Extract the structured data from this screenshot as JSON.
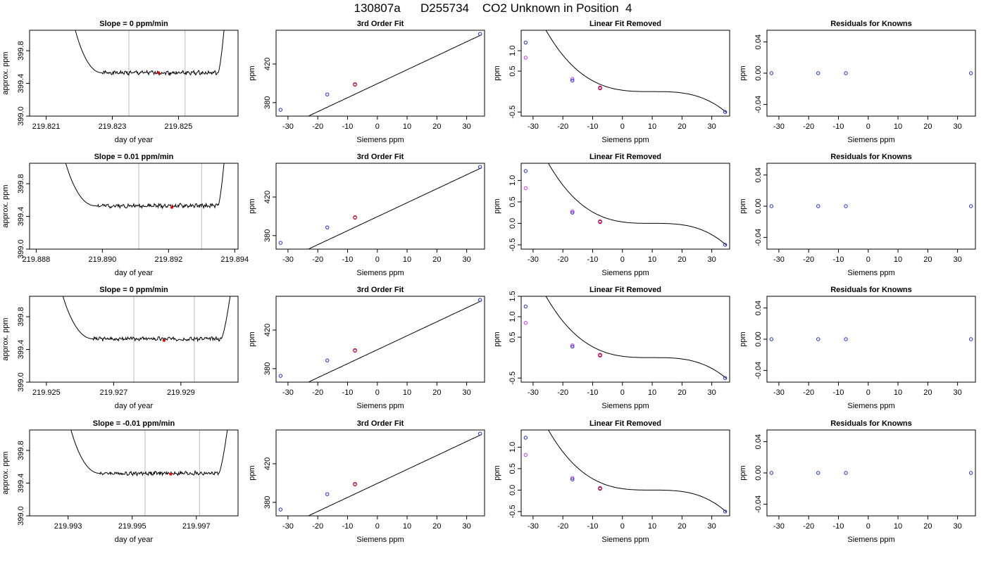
{
  "figure_title": "130807a      D255734    CO2 Unknown in Position  4",
  "chart_data": [
    {
      "type": "line",
      "title": "Slope =  0  ppm/min",
      "xlabel": "day of year",
      "ylabel": "approx. ppm",
      "xlim": [
        219.8205,
        219.8268
      ],
      "ylim": [
        399.0,
        400.05
      ],
      "xticks": [
        219.821,
        219.823,
        219.825
      ],
      "xtick_labels": [
        "219.821",
        "219.823",
        "219.825"
      ],
      "yticks": [
        399.0,
        399.4,
        399.8
      ],
      "ytick_labels": [
        "399.0",
        "399.4",
        "399.8"
      ],
      "vlines": [
        219.8235,
        219.8252
      ],
      "vline_color": "#bbbbbb",
      "marker": {
        "x": 219.8244,
        "y": 399.53
      },
      "trace": {
        "x_start": 219.8218,
        "x_end": 219.8264,
        "plateau_start": 219.8227,
        "plateau_end": 219.8262,
        "plateau": 399.53,
        "high": 400.15,
        "seed": 1
      }
    },
    {
      "type": "scatter",
      "title": "3rd Order Fit",
      "xlabel": "Siemens ppm",
      "ylabel": "ppm",
      "xlim": [
        -34,
        36
      ],
      "ylim": [
        366,
        455
      ],
      "xticks": [
        -30,
        -20,
        -10,
        0,
        10,
        20,
        30
      ],
      "xtick_labels": [
        "-30",
        "-20",
        "-10",
        "0",
        "10",
        "20",
        "30"
      ],
      "yticks": [
        380,
        420
      ],
      "ytick_labels": [
        "380",
        "420"
      ],
      "curve": {
        "a": 399.6,
        "b": 1.45
      },
      "points_blue": [
        [
          -32.5,
          372.5
        ],
        [
          -16.8,
          388.5
        ],
        [
          -7.5,
          398.6
        ],
        [
          34.5,
          451.2
        ]
      ],
      "points_red": [
        [
          -7.5,
          399.0
        ]
      ]
    },
    {
      "type": "scatter",
      "title": "Linear Fit Removed",
      "xlabel": "Siemens ppm",
      "ylabel": "ppm",
      "xlim": [
        -34,
        36
      ],
      "ylim": [
        -0.6,
        1.5
      ],
      "xticks": [
        -30,
        -20,
        -10,
        0,
        10,
        20,
        30
      ],
      "xtick_labels": [
        "-30",
        "-20",
        "-10",
        "0",
        "10",
        "20",
        "30"
      ],
      "yticks": [
        -0.5,
        0.5,
        1.0
      ],
      "ytick_labels": [
        "-0.5",
        "0.5",
        "1.0"
      ],
      "curve": {
        "c0": 0.0,
        "c1": 0.0,
        "c2": 0.0,
        "c3": 0.0
      },
      "points_blue": [
        [
          -32.5,
          1.2
        ],
        [
          -16.8,
          0.27
        ],
        [
          -7.5,
          0.08
        ],
        [
          34.5,
          -0.5
        ]
      ],
      "points_magenta": [
        [
          -32.5,
          0.83
        ],
        [
          -16.8,
          0.31
        ],
        [
          -7.5,
          0.1
        ]
      ],
      "points_red": [
        [
          -7.5,
          0.09
        ]
      ]
    },
    {
      "type": "scatter",
      "title": "Residuals for Knowns",
      "xlabel": "Siemens ppm",
      "ylabel": "ppm",
      "xlim": [
        -34,
        36
      ],
      "ylim": [
        -0.055,
        0.055
      ],
      "xticks": [
        -30,
        -20,
        -10,
        0,
        10,
        20,
        30
      ],
      "xtick_labels": [
        "-30",
        "-20",
        "-10",
        "0",
        "10",
        "20",
        "30"
      ],
      "yticks": [
        -0.04,
        0.0,
        0.04
      ],
      "ytick_labels": [
        "-0.04",
        "0.00",
        "0.04"
      ],
      "points_blue": [
        [
          -32.5,
          0
        ],
        [
          -16.8,
          0
        ],
        [
          -7.5,
          0
        ],
        [
          34.5,
          0
        ]
      ]
    },
    {
      "type": "line",
      "title": "Slope =  0.01  ppm/min",
      "xlabel": "day of year",
      "ylabel": "approx. ppm",
      "xlim": [
        219.8878,
        219.8941
      ],
      "ylim": [
        399.0,
        400.05
      ],
      "xticks": [
        219.888,
        219.89,
        219.892,
        219.894
      ],
      "xtick_labels": [
        "219.888",
        "219.890",
        "219.892",
        "219.894"
      ],
      "yticks": [
        399.0,
        399.4,
        399.8
      ],
      "ytick_labels": [
        "399.0",
        "399.4",
        "399.8"
      ],
      "vlines": [
        219.8911,
        219.893
      ],
      "vline_color": "#bbbbbb",
      "marker": {
        "x": 219.8921,
        "y": 399.51
      },
      "trace": {
        "x_start": 219.8888,
        "x_end": 219.8937,
        "plateau_start": 219.8898,
        "plateau_end": 219.8935,
        "plateau": 399.53,
        "high": 400.15,
        "seed": 2
      }
    },
    {
      "type": "scatter",
      "title": "3rd Order Fit",
      "xlabel": "Siemens ppm",
      "ylabel": "ppm",
      "xlim": [
        -34,
        36
      ],
      "ylim": [
        366,
        455
      ],
      "xticks": [
        -30,
        -20,
        -10,
        0,
        10,
        20,
        30
      ],
      "xtick_labels": [
        "-30",
        "-20",
        "-10",
        "0",
        "10",
        "20",
        "30"
      ],
      "yticks": [
        380,
        420
      ],
      "ytick_labels": [
        "380",
        "420"
      ],
      "curve": {
        "a": 399.6,
        "b": 1.45
      },
      "points_blue": [
        [
          -32.5,
          372.5
        ],
        [
          -16.8,
          388.5
        ],
        [
          -7.5,
          398.6
        ],
        [
          34.5,
          451.2
        ]
      ],
      "points_red": [
        [
          -7.5,
          399.0
        ]
      ]
    },
    {
      "type": "scatter",
      "title": "Linear Fit Removed",
      "xlabel": "Siemens ppm",
      "ylabel": "ppm",
      "xlim": [
        -34,
        36
      ],
      "ylim": [
        -0.6,
        1.4
      ],
      "xticks": [
        -30,
        -20,
        -10,
        0,
        10,
        20,
        30
      ],
      "xtick_labels": [
        "-30",
        "-20",
        "-10",
        "0",
        "10",
        "20",
        "30"
      ],
      "yticks": [
        -0.5,
        0.0,
        0.5,
        1.0
      ],
      "ytick_labels": [
        "-0.5",
        "0.0",
        "0.5",
        "1.0"
      ],
      "curve": {
        "c0": 0.0,
        "c1": 0.0,
        "c2": 0.0,
        "c3": 0.0
      },
      "points_blue": [
        [
          -32.5,
          1.22
        ],
        [
          -16.8,
          0.25
        ],
        [
          -7.5,
          0.03
        ],
        [
          34.5,
          -0.5
        ]
      ],
      "points_magenta": [
        [
          -32.5,
          0.82
        ],
        [
          -16.8,
          0.28
        ],
        [
          -7.5,
          0.05
        ]
      ],
      "points_red": [
        [
          -7.5,
          0.04
        ]
      ]
    },
    {
      "type": "scatter",
      "title": "Residuals for Knowns",
      "xlabel": "Siemens ppm",
      "ylabel": "ppm",
      "xlim": [
        -34,
        36
      ],
      "ylim": [
        -0.055,
        0.055
      ],
      "xticks": [
        -30,
        -20,
        -10,
        0,
        10,
        20,
        30
      ],
      "xtick_labels": [
        "-30",
        "-20",
        "-10",
        "0",
        "10",
        "20",
        "30"
      ],
      "yticks": [
        -0.04,
        0.0,
        0.04
      ],
      "ytick_labels": [
        "-0.04",
        "0.00",
        "0.04"
      ],
      "points_blue": [
        [
          -32.5,
          0
        ],
        [
          -16.8,
          0
        ],
        [
          -7.5,
          0
        ],
        [
          34.5,
          0
        ]
      ]
    },
    {
      "type": "line",
      "title": "Slope =  0  ppm/min",
      "xlabel": "day of year",
      "ylabel": "approx. ppm",
      "xlim": [
        219.9245,
        219.9307
      ],
      "ylim": [
        399.0,
        400.05
      ],
      "xticks": [
        219.925,
        219.927,
        219.929
      ],
      "xtick_labels": [
        "219.925",
        "219.927",
        "219.929"
      ],
      "yticks": [
        399.0,
        399.4,
        399.8
      ],
      "ytick_labels": [
        "399.0",
        "399.4",
        "399.8"
      ],
      "vlines": [
        219.9276,
        219.9294
      ],
      "vline_color": "#bbbbbb",
      "marker": {
        "x": 219.9285,
        "y": 399.51
      },
      "trace": {
        "x_start": 219.9254,
        "x_end": 219.9305,
        "plateau_start": 219.9264,
        "plateau_end": 219.9302,
        "plateau": 399.53,
        "high": 400.15,
        "seed": 3
      }
    },
    {
      "type": "scatter",
      "title": "3rd Order Fit",
      "xlabel": "Siemens ppm",
      "ylabel": "ppm",
      "xlim": [
        -34,
        36
      ],
      "ylim": [
        366,
        455
      ],
      "xticks": [
        -30,
        -20,
        -10,
        0,
        10,
        20,
        30
      ],
      "xtick_labels": [
        "-30",
        "-20",
        "-10",
        "0",
        "10",
        "20",
        "30"
      ],
      "yticks": [
        380,
        420
      ],
      "ytick_labels": [
        "380",
        "420"
      ],
      "curve": {
        "a": 399.6,
        "b": 1.45
      },
      "points_blue": [
        [
          -32.5,
          372.5
        ],
        [
          -16.8,
          388.5
        ],
        [
          -7.5,
          398.6
        ],
        [
          34.5,
          451.2
        ]
      ],
      "points_red": [
        [
          -7.5,
          399.0
        ]
      ]
    },
    {
      "type": "scatter",
      "title": "Linear Fit Removed",
      "xlabel": "Siemens ppm",
      "ylabel": "ppm",
      "xlim": [
        -34,
        36
      ],
      "ylim": [
        -0.6,
        1.5
      ],
      "xticks": [
        -30,
        -20,
        -10,
        0,
        10,
        20,
        30
      ],
      "xtick_labels": [
        "-30",
        "-20",
        "-10",
        "0",
        "10",
        "20",
        "30"
      ],
      "yticks": [
        -0.5,
        0.5,
        1.0,
        1.5
      ],
      "ytick_labels": [
        "-0.5",
        "0.5",
        "1.0",
        "1.5"
      ],
      "curve": {
        "c0": 0.0,
        "c1": 0.0,
        "c2": 0.0,
        "c3": 0.0
      },
      "points_blue": [
        [
          -32.5,
          1.25
        ],
        [
          -16.8,
          0.27
        ],
        [
          -7.5,
          0.05
        ],
        [
          34.5,
          -0.5
        ]
      ],
      "points_magenta": [
        [
          -32.5,
          0.85
        ],
        [
          -16.8,
          0.3
        ],
        [
          -7.5,
          0.07
        ]
      ],
      "points_red": [
        [
          -7.5,
          0.06
        ]
      ]
    },
    {
      "type": "scatter",
      "title": "Residuals for Knowns",
      "xlabel": "Siemens ppm",
      "ylabel": "ppm",
      "xlim": [
        -34,
        36
      ],
      "ylim": [
        -0.055,
        0.055
      ],
      "xticks": [
        -30,
        -20,
        -10,
        0,
        10,
        20,
        30
      ],
      "xtick_labels": [
        "-30",
        "-20",
        "-10",
        "0",
        "10",
        "20",
        "30"
      ],
      "yticks": [
        -0.04,
        0.0,
        0.04
      ],
      "ytick_labels": [
        "-0.04",
        "0.00",
        "0.04"
      ],
      "points_blue": [
        [
          -32.5,
          0
        ],
        [
          -16.8,
          0
        ],
        [
          -7.5,
          0
        ],
        [
          34.5,
          0
        ]
      ]
    },
    {
      "type": "line",
      "title": "Slope =  -0.01  ppm/min",
      "xlabel": "day of year",
      "ylabel": "approx. ppm",
      "xlim": [
        219.9918,
        219.9983
      ],
      "ylim": [
        399.0,
        400.05
      ],
      "xticks": [
        219.993,
        219.995,
        219.997
      ],
      "xtick_labels": [
        "219.993",
        "219.995",
        "219.997"
      ],
      "yticks": [
        399.0,
        399.4,
        399.8
      ],
      "ytick_labels": [
        "399.0",
        "399.4",
        "399.8"
      ],
      "vlines": [
        219.9954,
        219.9971
      ],
      "vline_color": "#bbbbbb",
      "marker": {
        "x": 219.9962,
        "y": 399.51
      },
      "trace": {
        "x_start": 219.993,
        "x_end": 219.998,
        "plateau_start": 219.994,
        "plateau_end": 219.9977,
        "plateau": 399.52,
        "high": 400.15,
        "seed": 4
      }
    },
    {
      "type": "scatter",
      "title": "3rd Order Fit",
      "xlabel": "Siemens ppm",
      "ylabel": "ppm",
      "xlim": [
        -34,
        36
      ],
      "ylim": [
        366,
        455
      ],
      "xticks": [
        -30,
        -20,
        -10,
        0,
        10,
        20,
        30
      ],
      "xtick_labels": [
        "-30",
        "-20",
        "-10",
        "0",
        "10",
        "20",
        "30"
      ],
      "yticks": [
        380,
        420
      ],
      "ytick_labels": [
        "380",
        "420"
      ],
      "curve": {
        "a": 399.6,
        "b": 1.45
      },
      "points_blue": [
        [
          -32.5,
          372.5
        ],
        [
          -16.8,
          388.5
        ],
        [
          -7.5,
          398.6
        ],
        [
          34.5,
          451.2
        ]
      ],
      "points_red": [
        [
          -7.5,
          399.0
        ]
      ]
    },
    {
      "type": "scatter",
      "title": "Linear Fit Removed",
      "xlabel": "Siemens ppm",
      "ylabel": "ppm",
      "xlim": [
        -34,
        36
      ],
      "ylim": [
        -0.6,
        1.4
      ],
      "xticks": [
        -30,
        -20,
        -10,
        0,
        10,
        20,
        30
      ],
      "xtick_labels": [
        "-30",
        "-20",
        "-10",
        "0",
        "10",
        "20",
        "30"
      ],
      "yticks": [
        -0.5,
        0.0,
        0.5,
        1.0
      ],
      "ytick_labels": [
        "-0.5",
        "0.0",
        "0.5",
        "1.0"
      ],
      "curve": {
        "c0": 0.0,
        "c1": 0.0,
        "c2": 0.0,
        "c3": 0.0
      },
      "points_blue": [
        [
          -32.5,
          1.22
        ],
        [
          -16.8,
          0.25
        ],
        [
          -7.5,
          0.03
        ],
        [
          34.5,
          -0.5
        ]
      ],
      "points_magenta": [
        [
          -32.5,
          0.82
        ],
        [
          -16.8,
          0.28
        ],
        [
          -7.5,
          0.05
        ]
      ],
      "points_red": [
        [
          -7.5,
          0.04
        ]
      ]
    },
    {
      "type": "scatter",
      "title": "Residuals for Knowns",
      "xlabel": "Siemens ppm",
      "ylabel": "ppm",
      "xlim": [
        -34,
        36
      ],
      "ylim": [
        -0.055,
        0.055
      ],
      "xticks": [
        -30,
        -20,
        -10,
        0,
        10,
        20,
        30
      ],
      "xtick_labels": [
        "-30",
        "-20",
        "-10",
        "0",
        "10",
        "20",
        "30"
      ],
      "yticks": [
        -0.04,
        0.0,
        0.04
      ],
      "ytick_labels": [
        "-0.04",
        "0.00",
        "0.04"
      ],
      "points_blue": [
        [
          -32.5,
          0
        ],
        [
          -16.8,
          0
        ],
        [
          -7.5,
          0
        ],
        [
          34.5,
          0
        ]
      ]
    }
  ]
}
